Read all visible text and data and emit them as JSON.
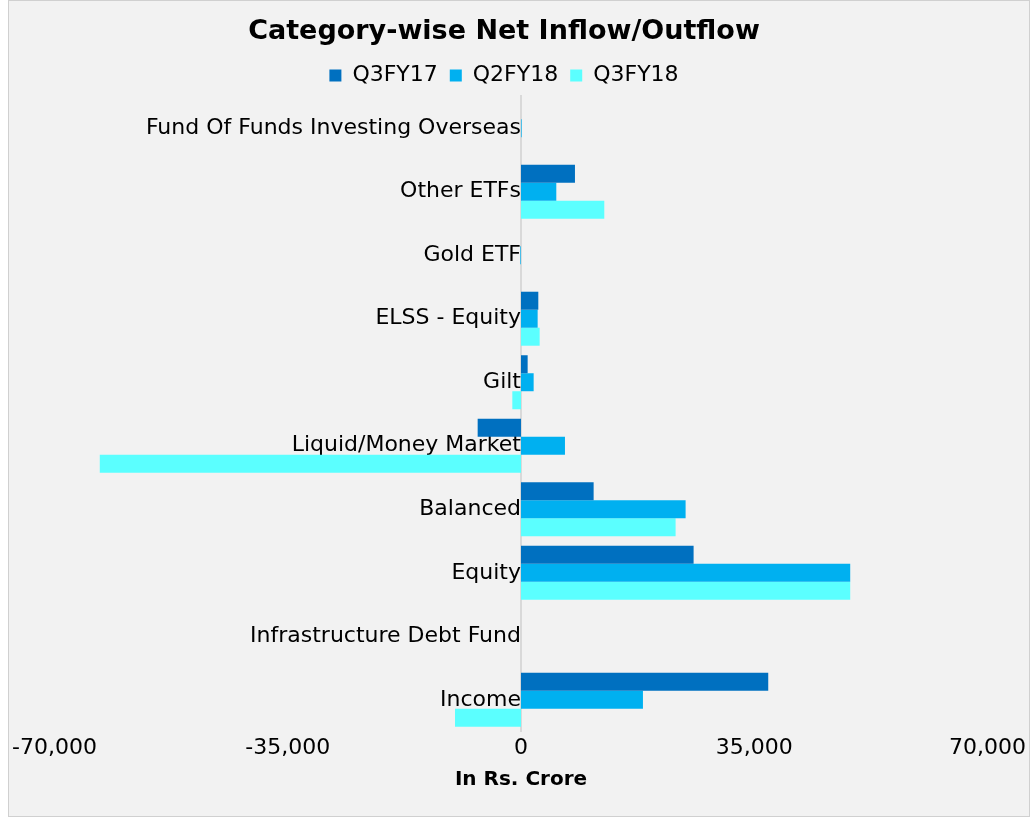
{
  "chart_data": {
    "type": "bar",
    "orientation": "horizontal",
    "title": "Category-wise Net Inflow/Outflow",
    "xlabel": "In Rs. Crore",
    "categories": [
      "Fund Of Funds Investing Overseas",
      "Other ETFs",
      "Gold ETF",
      "ELSS - Equity",
      "Gilt",
      "Liquid/Money Market",
      "Balanced",
      "Equity",
      "Infrastructure Debt Fund",
      "Income"
    ],
    "series": [
      {
        "name": "Q3FY17",
        "color": "#0070c0",
        "values": [
          0,
          8100,
          0,
          2600,
          1000,
          -6500,
          10900,
          25900,
          0,
          37100
        ]
      },
      {
        "name": "Q2FY18",
        "color": "#00b0f0",
        "values": [
          100,
          5300,
          -100,
          2500,
          1900,
          6600,
          24700,
          49400,
          0,
          18300
        ]
      },
      {
        "name": "Q3FY18",
        "color": "#5bffff",
        "values": [
          0,
          12500,
          0,
          2800,
          -1300,
          -63200,
          23200,
          49400,
          0,
          -9900
        ]
      }
    ],
    "xlim": [
      -70000,
      70000
    ],
    "xticks": [
      {
        "value": -70000,
        "label": "-70,000"
      },
      {
        "value": -35000,
        "label": "-35,000"
      },
      0,
      {
        "value": 35000,
        "label": "35,000"
      },
      {
        "value": 70000,
        "label": "70,000"
      }
    ],
    "grid": false,
    "legend": "top"
  }
}
